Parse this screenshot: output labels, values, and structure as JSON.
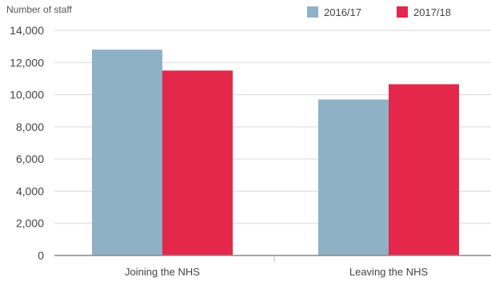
{
  "chart_data": {
    "type": "bar",
    "title": "",
    "xlabel": "",
    "ylabel": "Number of staff",
    "ylim": [
      0,
      14000
    ],
    "yticks": [
      0,
      2000,
      4000,
      6000,
      8000,
      10000,
      12000,
      14000
    ],
    "ytick_labels": [
      "0",
      "2,000",
      "4,000",
      "6,000",
      "8,000",
      "10,000",
      "12,000",
      "14,000"
    ],
    "categories": [
      "Joining the NHS",
      "Leaving the NHS"
    ],
    "series": [
      {
        "name": "2016/17",
        "values": [
          12800,
          9700
        ],
        "color": "#8fb1c6"
      },
      {
        "name": "2017/18",
        "values": [
          11500,
          10650
        ],
        "color": "#e3284b"
      }
    ],
    "grid": true,
    "legend": "top-right"
  }
}
